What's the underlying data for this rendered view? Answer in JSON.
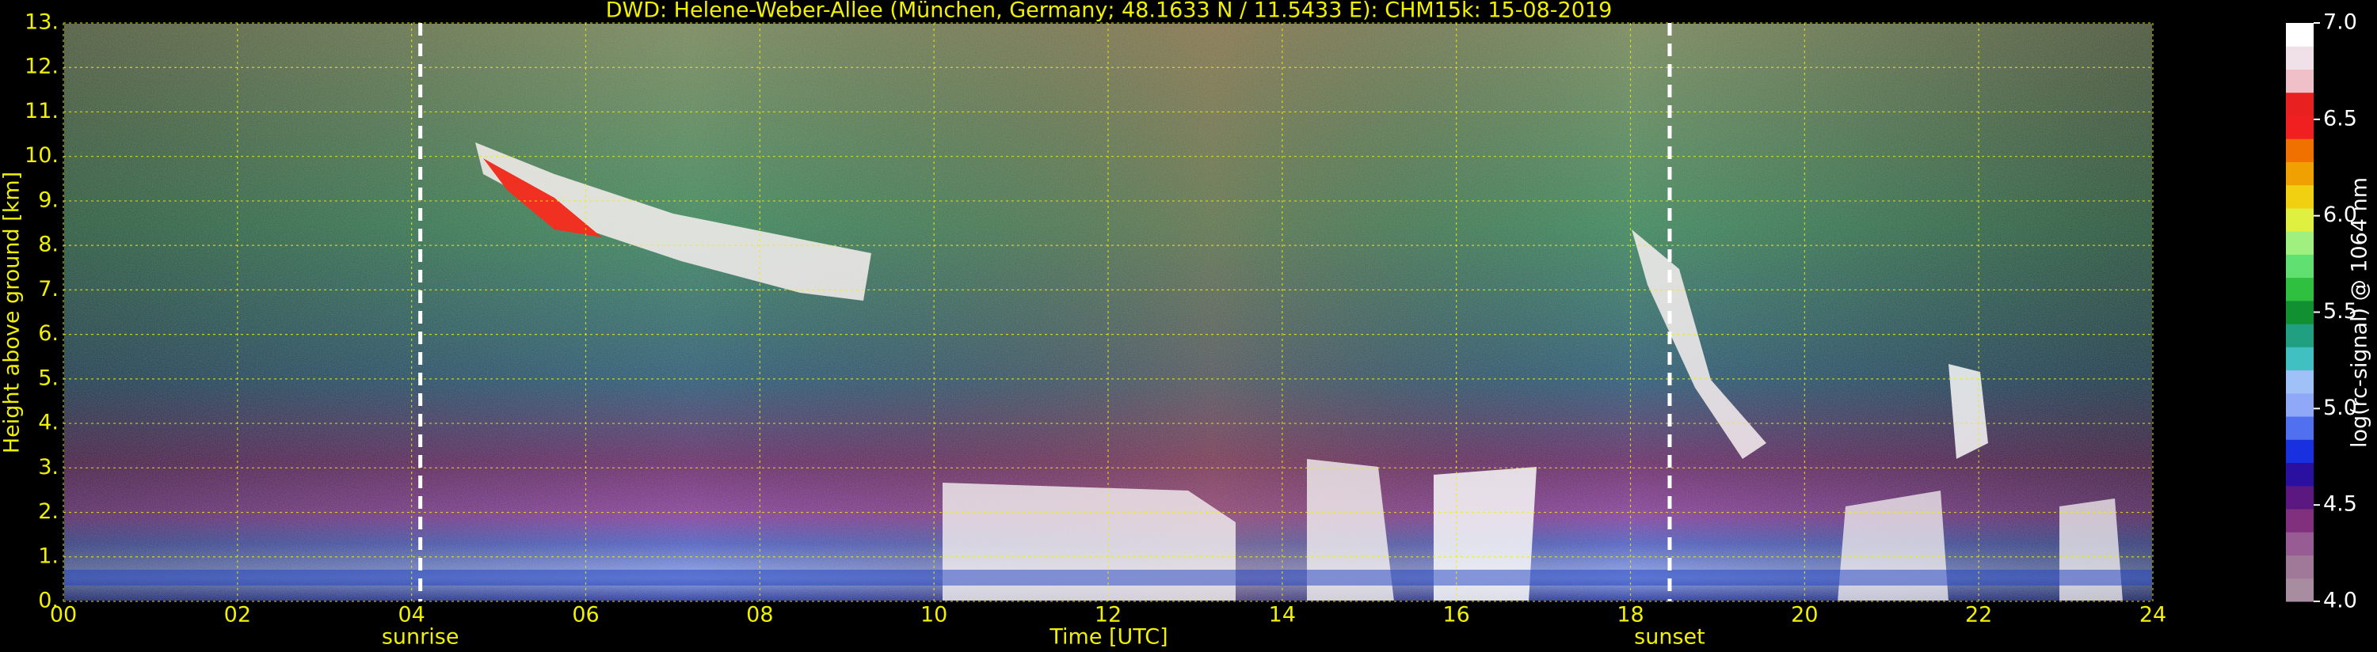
{
  "chart_data": {
    "type": "heatmap",
    "title": "DWD: Helene-Weber-Allee (München, Germany; 48.1633 N / 11.5433 E):    CHM15k: 15-08-2019",
    "x_label": "Time [UTC]",
    "y_label": "Height above ground [km]",
    "xlim": [
      0,
      24
    ],
    "xticks": [
      {
        "value": 0,
        "label": "00"
      },
      {
        "value": 2,
        "label": "02"
      },
      {
        "value": 4,
        "label": "04"
      },
      {
        "value": 6,
        "label": "06"
      },
      {
        "value": 8,
        "label": "08"
      },
      {
        "value": 10,
        "label": "10"
      },
      {
        "value": 12,
        "label": "12"
      },
      {
        "value": 14,
        "label": "14"
      },
      {
        "value": 16,
        "label": "16"
      },
      {
        "value": 18,
        "label": "18"
      },
      {
        "value": 20,
        "label": "20"
      },
      {
        "value": 22,
        "label": "22"
      },
      {
        "value": 24,
        "label": "24"
      }
    ],
    "ylim": [
      0,
      13
    ],
    "yticks": [
      {
        "value": 0,
        "label": "0."
      },
      {
        "value": 1,
        "label": "1."
      },
      {
        "value": 2,
        "label": "2."
      },
      {
        "value": 3,
        "label": "3."
      },
      {
        "value": 4,
        "label": "4."
      },
      {
        "value": 5,
        "label": "5."
      },
      {
        "value": 6,
        "label": "6."
      },
      {
        "value": 7,
        "label": "7."
      },
      {
        "value": 8,
        "label": "8."
      },
      {
        "value": 9,
        "label": "9."
      },
      {
        "value": 10,
        "label": "10."
      },
      {
        "value": 11,
        "label": "11."
      },
      {
        "value": 12,
        "label": "12."
      },
      {
        "value": 13,
        "label": "13."
      }
    ],
    "grid": true,
    "annotations": [
      {
        "text": "sunrise",
        "x": 4.1
      },
      {
        "text": "sunset",
        "x": 18.45
      }
    ],
    "colorbar": {
      "label": "log(rc-signal) @ 1064 nm",
      "clim": [
        4,
        7
      ],
      "ticks": [
        {
          "value": 4,
          "label": "4.0"
        },
        4.5,
        {
          "value": 5,
          "label": "5.0"
        },
        5.5,
        {
          "value": 6,
          "label": "6.0"
        },
        6.5,
        {
          "value": 7,
          "label": "7.0"
        }
      ],
      "colormap": [
        "#a88ca0",
        "#a07898",
        "#985c94",
        "#80307c",
        "#5a1880",
        "#2a10a0",
        "#1830e0",
        "#5070f0",
        "#90a8f8",
        "#a0c0f8",
        "#40c0c0",
        "#20a080",
        "#109030",
        "#30c040",
        "#60e070",
        "#a0f080",
        "#e0f040",
        "#f0d010",
        "#f0a000",
        "#f07000",
        "#f02020",
        "#e82020",
        "#f0c0c8",
        "#f0e0e8",
        "#ffffff"
      ]
    }
  }
}
